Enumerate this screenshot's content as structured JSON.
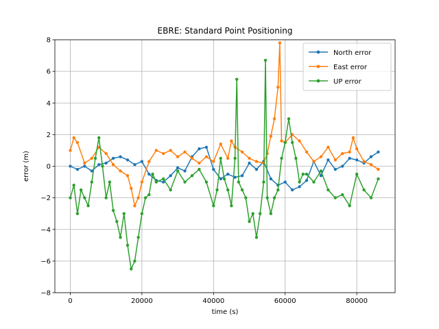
{
  "chart_data": {
    "type": "line",
    "title": "EBRE: Standard Point Positioning",
    "xlabel": "time (s)",
    "ylabel": "error (m)",
    "xlim": [
      -4300,
      90700
    ],
    "ylim": [
      -8,
      8
    ],
    "xticks": [
      0,
      20000,
      40000,
      60000,
      80000
    ],
    "yticks": [
      -8,
      -6,
      -4,
      -2,
      0,
      2,
      4,
      6,
      8
    ],
    "grid": true,
    "legend_position": "upper right",
    "marker": "circle",
    "series": [
      {
        "name": "North error",
        "color": "#1f77b4",
        "x": [
          0,
          2000,
          4000,
          6000,
          8000,
          10000,
          12000,
          14000,
          16000,
          18000,
          20000,
          22000,
          24000,
          26000,
          28000,
          30000,
          32000,
          34000,
          36000,
          38000,
          40000,
          42000,
          44000,
          46000,
          48000,
          50000,
          52000,
          54000,
          56000,
          58000,
          60000,
          62000,
          64000,
          66000,
          68000,
          70000,
          72000,
          74000,
          76000,
          78000,
          80000,
          82000,
          84000,
          86000
        ],
        "y": [
          0.0,
          -0.2,
          0.0,
          -0.3,
          0.1,
          0.2,
          0.5,
          0.6,
          0.4,
          0.1,
          0.3,
          -0.5,
          -0.9,
          -1.0,
          -0.6,
          -0.1,
          -0.3,
          0.6,
          1.1,
          1.2,
          -0.2,
          -0.8,
          -0.5,
          -0.7,
          -0.6,
          0.2,
          -0.2,
          0.3,
          -0.8,
          -1.2,
          -1.0,
          -1.5,
          -1.3,
          -0.9,
          0.3,
          -0.6,
          0.4,
          -0.2,
          0.0,
          0.5,
          0.4,
          0.2,
          0.6,
          0.9
        ]
      },
      {
        "name": "East error",
        "color": "#ff7f0e",
        "x": [
          0,
          1000,
          2000,
          4000,
          6000,
          8000,
          10000,
          12000,
          14000,
          16000,
          17000,
          18000,
          19000,
          20000,
          22000,
          24000,
          26000,
          28000,
          30000,
          32000,
          34000,
          36000,
          38000,
          40000,
          42000,
          44000,
          45000,
          46000,
          48000,
          50000,
          52000,
          54000,
          55000,
          56000,
          57000,
          58000,
          58500,
          59000,
          60000,
          62000,
          64000,
          66000,
          68000,
          70000,
          72000,
          74000,
          76000,
          78000,
          79000,
          80000,
          82000,
          84000,
          86000
        ],
        "y": [
          1.0,
          1.8,
          1.5,
          0.2,
          0.5,
          1.2,
          0.8,
          0.1,
          -0.3,
          -0.6,
          -1.4,
          -2.5,
          -2.0,
          -1.0,
          0.3,
          1.0,
          0.8,
          1.0,
          0.6,
          0.9,
          0.5,
          0.2,
          0.6,
          0.3,
          1.4,
          0.5,
          1.6,
          1.2,
          0.9,
          0.5,
          0.3,
          0.2,
          0.8,
          1.9,
          3.0,
          5.0,
          7.8,
          1.6,
          1.5,
          2.0,
          1.6,
          0.9,
          0.3,
          0.6,
          1.2,
          0.4,
          0.8,
          0.9,
          1.8,
          1.1,
          0.3,
          0.1,
          -0.2
        ]
      },
      {
        "name": "UP error",
        "color": "#2ca02c",
        "x": [
          0,
          1000,
          2000,
          3000,
          4000,
          5000,
          6000,
          7000,
          8000,
          9000,
          10000,
          11000,
          12000,
          13000,
          14000,
          15000,
          16000,
          17000,
          18000,
          19000,
          20000,
          21000,
          22000,
          23000,
          24000,
          26000,
          28000,
          30000,
          32000,
          34000,
          36000,
          38000,
          40000,
          41000,
          42000,
          43000,
          44000,
          45000,
          46000,
          46500,
          47000,
          48000,
          49000,
          50000,
          51000,
          52000,
          53000,
          54000,
          54500,
          55000,
          56000,
          57000,
          58000,
          59000,
          60000,
          61000,
          62000,
          63000,
          64000,
          65000,
          66000,
          68000,
          70000,
          72000,
          74000,
          76000,
          78000,
          80000,
          82000,
          84000,
          86000
        ],
        "y": [
          -2.0,
          -1.2,
          -3.0,
          -1.5,
          -2.0,
          -2.5,
          -1.0,
          0.5,
          1.8,
          0.0,
          -2.0,
          -1.0,
          -2.8,
          -3.5,
          -4.5,
          -3.0,
          -5.0,
          -6.5,
          -6.0,
          -4.5,
          -3.0,
          -2.0,
          -1.8,
          -0.5,
          -1.0,
          -0.8,
          -1.5,
          -0.3,
          -1.0,
          -0.6,
          -0.2,
          -1.0,
          -2.5,
          -1.5,
          0.5,
          -0.8,
          -1.5,
          -2.5,
          0.5,
          5.5,
          -1.0,
          -1.5,
          -2.0,
          -3.5,
          -3.0,
          -4.5,
          -3.0,
          -1.0,
          6.7,
          -2.0,
          -3.0,
          -2.0,
          -1.5,
          0.5,
          1.5,
          3.0,
          1.5,
          0.5,
          -1.0,
          -0.5,
          -0.5,
          -1.0,
          -0.3,
          -1.5,
          -2.0,
          -1.8,
          -2.5,
          -0.5,
          -1.5,
          -2.0,
          -0.8
        ]
      }
    ]
  }
}
